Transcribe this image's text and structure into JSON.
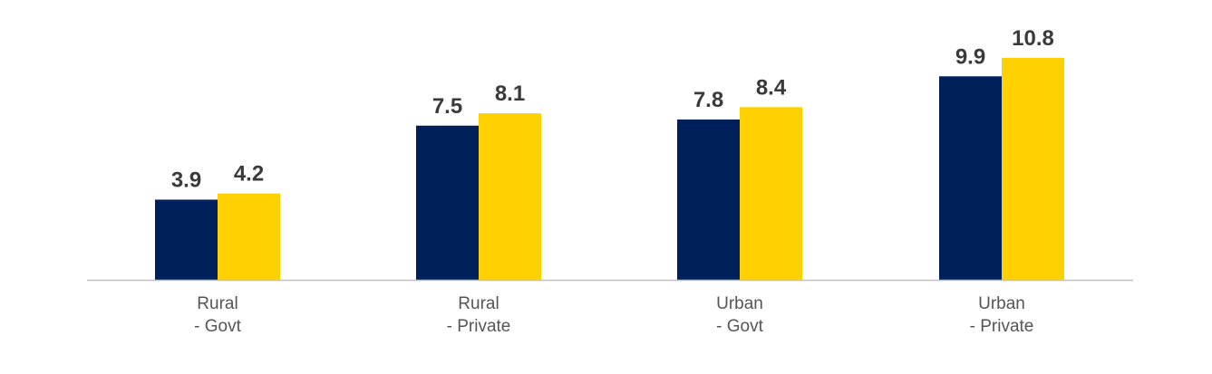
{
  "chart_data": {
    "type": "bar",
    "categories": [
      [
        "Rural",
        "- Govt"
      ],
      [
        "Rural",
        "- Private"
      ],
      [
        "Urban",
        "- Govt"
      ],
      [
        "Urban",
        "- Private"
      ]
    ],
    "series": [
      {
        "values": [
          3.9,
          7.5,
          7.8,
          9.9
        ],
        "color": "#00205B"
      },
      {
        "values": [
          4.2,
          8.1,
          8.4,
          10.8
        ],
        "color": "#FFD100"
      }
    ],
    "title": "",
    "xlabel": "",
    "ylabel": "",
    "ylim": [
      0,
      12
    ],
    "grid": false,
    "legend": "none",
    "axis_color": "#bfbfbf"
  }
}
